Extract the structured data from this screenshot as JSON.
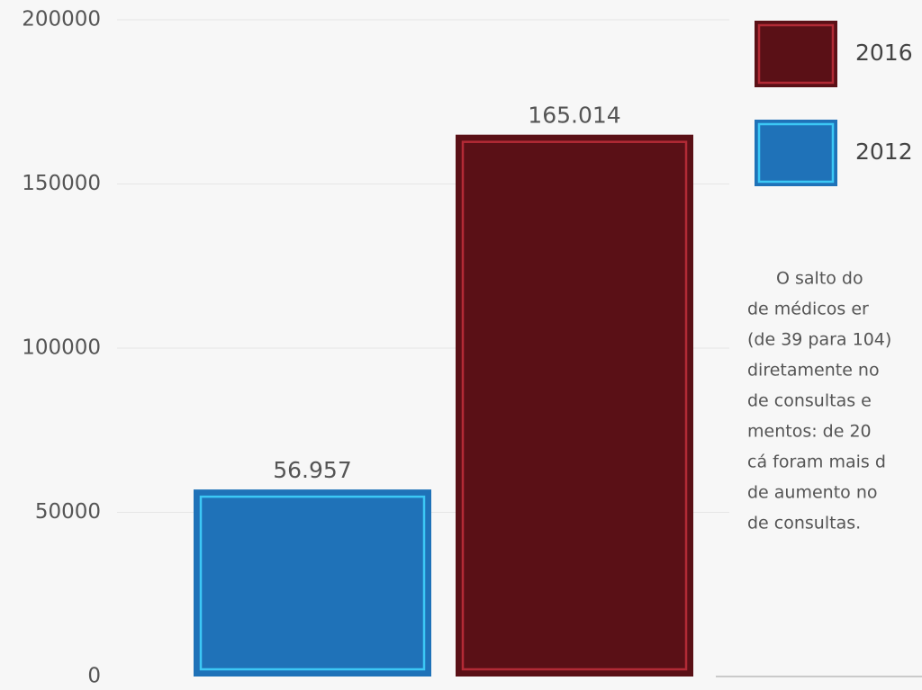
{
  "chart_data": {
    "type": "bar",
    "categories": [
      null
    ],
    "series": [
      {
        "name": "2012",
        "color": "#1f72b8",
        "border": "#3cc8f5",
        "values": [
          56957
        ],
        "value_labels": [
          "56.957"
        ]
      },
      {
        "name": "2016",
        "color": "#5a1016",
        "border": "#b22a35",
        "values": [
          165014
        ],
        "value_labels": [
          "165.014"
        ]
      }
    ],
    "ylim": [
      0,
      200000
    ],
    "yticks": [
      0,
      50000,
      100000,
      150000,
      200000
    ],
    "grid": true,
    "legend": "right",
    "annotation": [
      "O salto do",
      "de médicos er",
      "(de 39 para 104)",
      "diretamente no",
      "de consultas e",
      "mentos: de 20",
      "cá foram mais d",
      "de aumento no",
      "de consultas."
    ]
  }
}
